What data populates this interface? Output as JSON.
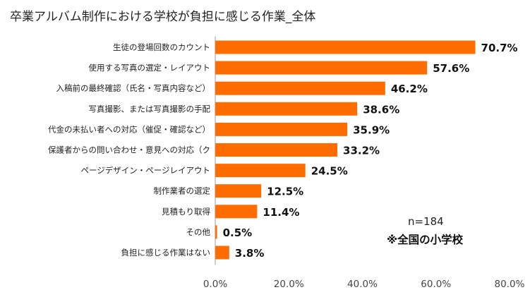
{
  "chart_data": {
    "type": "bar",
    "orientation": "horizontal",
    "title": "卒業アルバム制作における学校が負担に感じる作業_全体",
    "categories": [
      "生徒の登場回数のカウント",
      "使用する写真の選定・レイアウト",
      "入稿前の最終確認（氏名・写真内容など）",
      "写真撮影、または写真撮影の手配",
      "代金の未払い者への対応（催促・確認など）",
      "保護者からの問い合わせ・意見への対応（ク",
      "ページデザイン・ページレイアウト",
      "制作業者の選定",
      "見積もり取得",
      "その他",
      "負担に感じる作業はない"
    ],
    "values": [
      70.7,
      57.6,
      46.2,
      38.6,
      35.9,
      33.2,
      24.5,
      12.5,
      11.4,
      0.5,
      3.8
    ],
    "value_labels": [
      "70.7%",
      "57.6%",
      "46.2%",
      "38.6%",
      "35.9%",
      "33.2%",
      "24.5%",
      "12.5%",
      "11.4%",
      "0.5%",
      "3.8%"
    ],
    "xlim": [
      0,
      80
    ],
    "xticks": [
      0,
      20,
      40,
      60,
      80
    ],
    "xtick_labels": [
      "0.0%",
      "20.0%",
      "40.0%",
      "60.0%",
      "80.0%"
    ],
    "bar_color": "#ff6d01",
    "grid": false,
    "xlabel": "",
    "ylabel": ""
  },
  "notes": {
    "sample_size": "n=184",
    "scope": "※全国の小学校"
  }
}
